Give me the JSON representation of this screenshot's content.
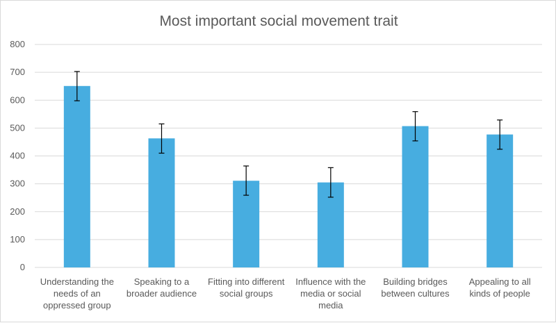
{
  "chart_data": {
    "type": "bar",
    "title": "Most important social movement trait",
    "xlabel": "",
    "ylabel": "",
    "categories": [
      [
        "Understanding the",
        "needs of an",
        "oppressed group"
      ],
      [
        "Speaking to a",
        "broader audience"
      ],
      [
        "Fitting into different",
        "social groups"
      ],
      [
        "Influence with the",
        "media or social",
        "media"
      ],
      [
        "Building bridges",
        "between cultures"
      ],
      [
        "Appealing to all",
        "kinds of people"
      ]
    ],
    "values": [
      651,
      463,
      311,
      305,
      507,
      477
    ],
    "error_low": [
      598,
      410,
      259,
      252,
      454,
      424
    ],
    "error_high": [
      703,
      515,
      364,
      358,
      559,
      529
    ],
    "ylim": [
      0,
      800
    ],
    "yticks": [
      0,
      100,
      200,
      300,
      400,
      500,
      600,
      700,
      800
    ],
    "grid": true,
    "legend": "none",
    "bar_color": "#47ADE0",
    "gridline_color": "#D9D9D9",
    "text_color": "#595959"
  }
}
